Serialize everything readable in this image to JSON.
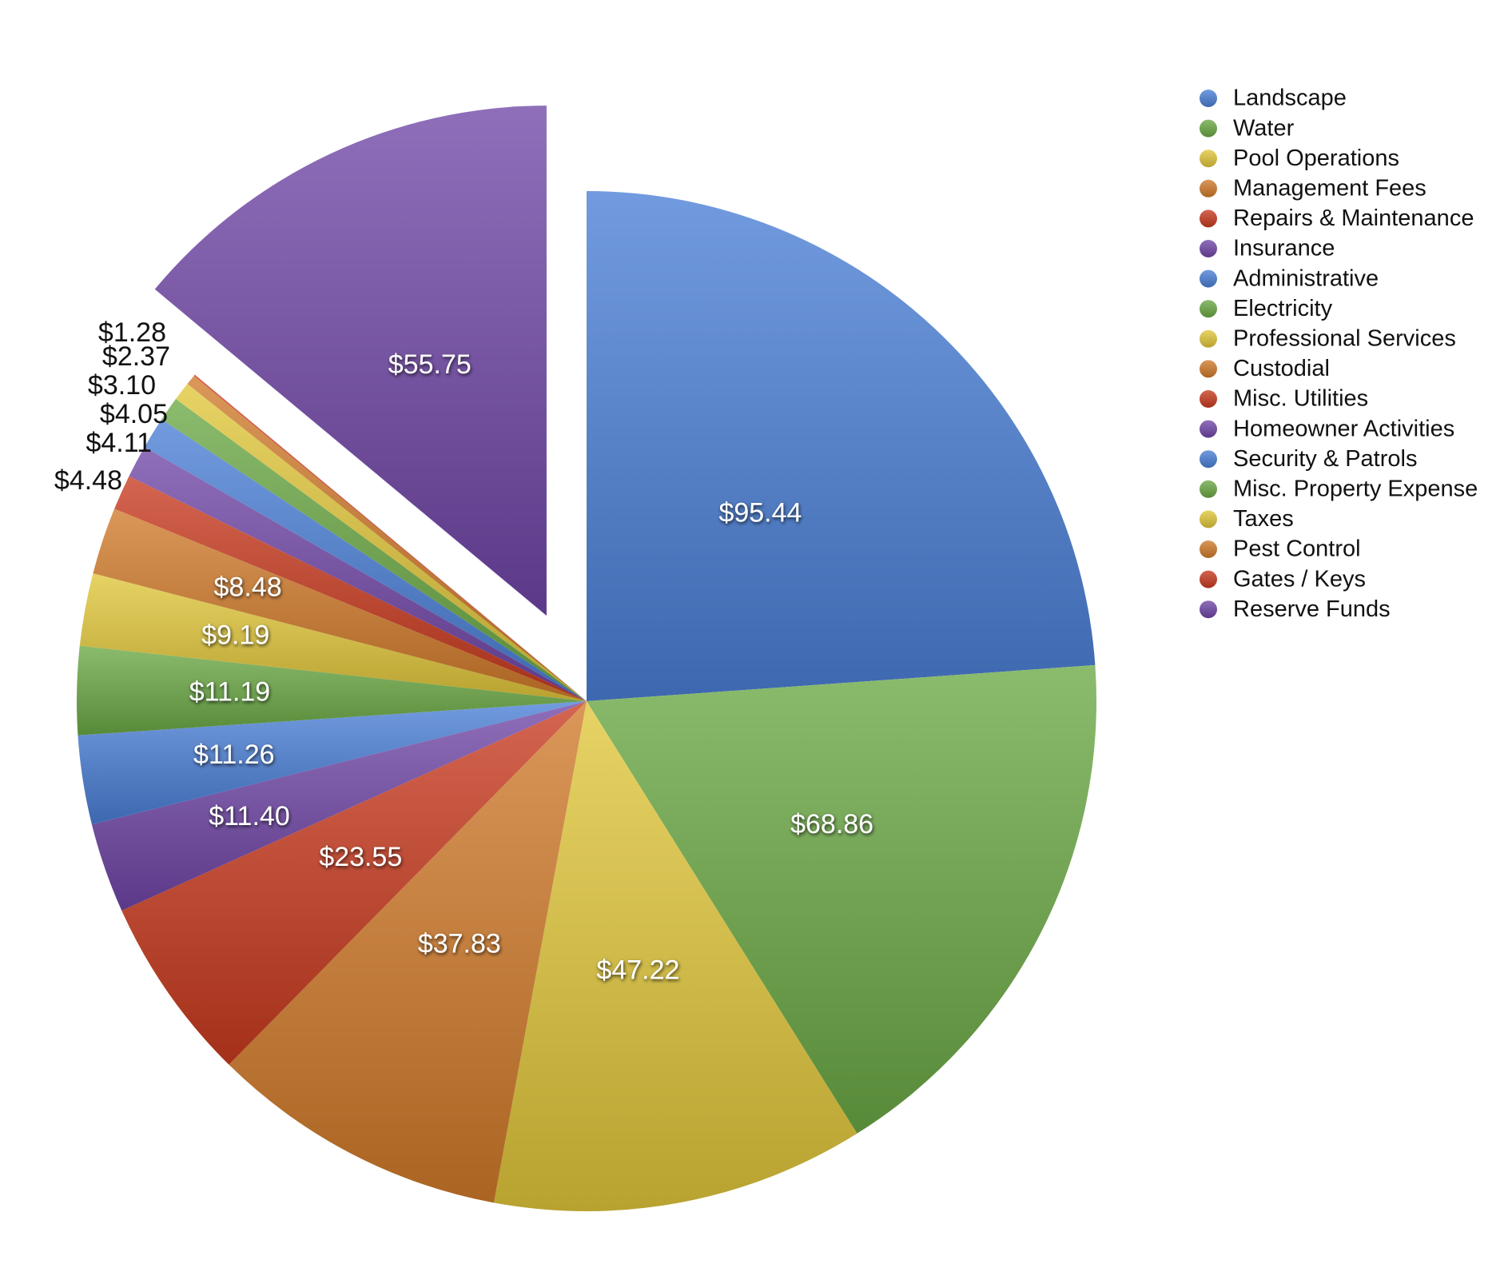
{
  "chart_data": {
    "type": "pie",
    "title": "",
    "legend_position": "right",
    "categories": [
      "Landscape",
      "Water",
      "Pool Operations",
      "Management Fees",
      "Repairs & Maintenance",
      "Insurance",
      "Administrative",
      "Electricity",
      "Professional Services",
      "Custodial",
      "Misc. Utilities",
      "Homeowner Activities",
      "Security & Patrols",
      "Misc. Property Expense",
      "Taxes",
      "Pest Control",
      "Gates / Keys",
      "Reserve Funds"
    ],
    "values": [
      95.44,
      68.86,
      47.22,
      37.83,
      23.55,
      11.4,
      11.26,
      11.19,
      9.19,
      8.48,
      4.48,
      4.11,
      4.05,
      3.1,
      2.37,
      1.28,
      0.2,
      55.75
    ],
    "value_labels": [
      "$95.44",
      "$68.86",
      "$47.22",
      "$37.83",
      "$23.55",
      "$11.40",
      "$11.26",
      "$11.19",
      "$9.19",
      "$8.48",
      "$4.48",
      "$4.11",
      "$4.05",
      "$3.10",
      "$2.37",
      "$1.28",
      "",
      "$55.75"
    ],
    "exploded_slice": "Reserve Funds",
    "colors": [
      "#4a7fd6",
      "#6aa844",
      "#e0c63a",
      "#d07a2a",
      "#c83a1e",
      "#7046a6"
    ]
  }
}
